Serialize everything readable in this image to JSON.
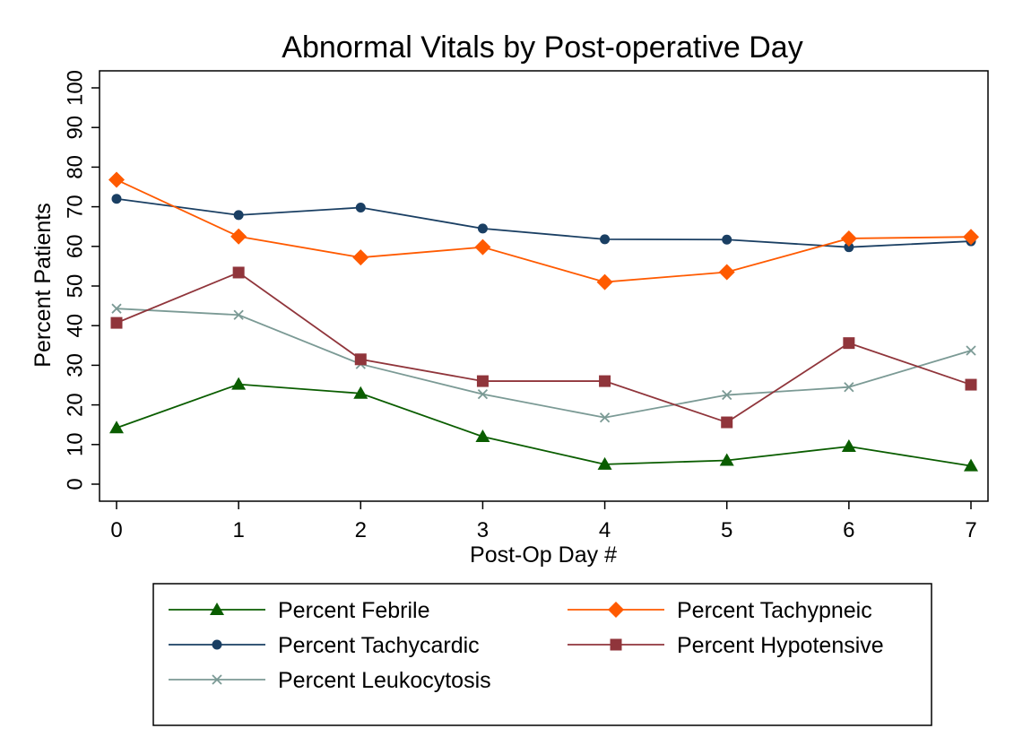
{
  "chart_data": {
    "type": "line",
    "title": "Abnormal Vitals by Post-operative Day",
    "xlabel": "Post-Op Day #",
    "ylabel": "Percent Patients",
    "x": [
      0,
      1,
      2,
      3,
      4,
      5,
      6,
      7
    ],
    "xlim": [
      0,
      7
    ],
    "ylim": [
      0,
      100
    ],
    "yticks": [
      0,
      10,
      20,
      30,
      40,
      50,
      60,
      70,
      80,
      90,
      100
    ],
    "xticks": [
      0,
      1,
      2,
      3,
      4,
      5,
      6,
      7
    ],
    "grid": false,
    "legend_position": "bottom",
    "series": [
      {
        "name": "Percent Febrile",
        "color": "#0a5d00",
        "marker": "triangle",
        "values": [
          14.2,
          25.2,
          22.9,
          12.0,
          5.0,
          6.0,
          9.5,
          4.6
        ]
      },
      {
        "name": "Percent Tachypneic",
        "color": "#ff5a00",
        "marker": "diamond",
        "values": [
          76.8,
          62.5,
          57.2,
          59.8,
          51.0,
          53.5,
          62.0,
          62.4
        ]
      },
      {
        "name": "Percent Tachycardic",
        "color": "#1a3f63",
        "marker": "circle",
        "values": [
          72.0,
          67.9,
          69.8,
          64.5,
          61.8,
          61.7,
          59.8,
          61.3
        ]
      },
      {
        "name": "Percent Hypotensive",
        "color": "#90353b",
        "marker": "square",
        "values": [
          40.7,
          53.4,
          31.5,
          26.0,
          26.0,
          15.6,
          35.6,
          25.1
        ]
      },
      {
        "name": "Percent Leukocytosis",
        "color": "#7b9a95",
        "marker": "x",
        "values": [
          44.3,
          42.7,
          30.3,
          22.7,
          16.8,
          22.5,
          24.5,
          33.7
        ]
      }
    ]
  }
}
